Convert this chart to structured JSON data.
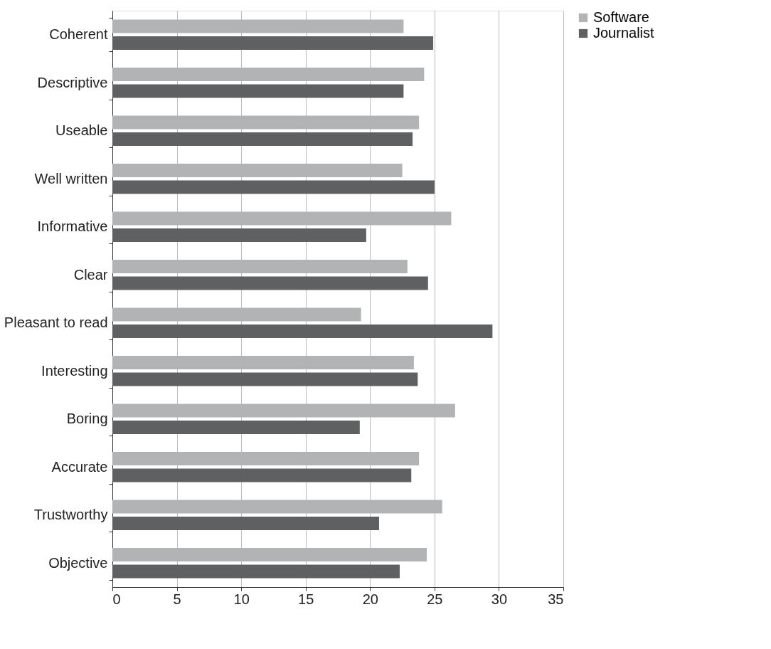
{
  "chart_data": {
    "type": "bar",
    "orientation": "horizontal",
    "categories": [
      "Coherent",
      "Descriptive",
      "Useable",
      "Well written",
      "Informative",
      "Clear",
      "Pleasant to read",
      "Interesting",
      "Boring",
      "Accurate",
      "Trustworthy",
      "Objective"
    ],
    "series": [
      {
        "name": "Software",
        "color": "#b2b3b4",
        "values": [
          22.6,
          24.2,
          23.8,
          22.5,
          26.3,
          22.9,
          19.3,
          23.4,
          26.6,
          23.8,
          25.6,
          24.4
        ]
      },
      {
        "name": "Journalist",
        "color": "#5f6062",
        "values": [
          24.9,
          22.6,
          23.3,
          25.0,
          19.7,
          24.5,
          29.5,
          23.7,
          19.2,
          23.2,
          20.7,
          22.3
        ]
      }
    ],
    "xlim": [
      0,
      35
    ],
    "xticks": [
      0,
      5,
      10,
      15,
      20,
      25,
      30,
      35
    ],
    "grid": "x",
    "legend": "right"
  }
}
